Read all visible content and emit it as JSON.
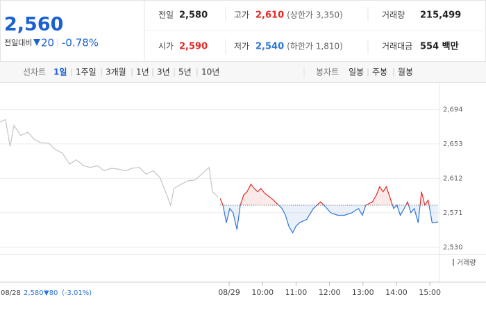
{
  "header": {
    "price": "2,560",
    "change_label": "전일대비",
    "change": "20",
    "change_pct": "-0.78%"
  },
  "stats": [
    {
      "label": "전일",
      "value": "2,580",
      "color": "#222222"
    },
    {
      "label": "고가",
      "value": "2,610",
      "note": "(상한가 3,350)",
      "color": "#e22926"
    },
    {
      "label": "거래량",
      "value": "215,499",
      "color": "#222222"
    },
    {
      "label": "시가",
      "value": "2,590",
      "color": "#e22926"
    },
    {
      "label": "저가",
      "value": "2,540",
      "note": "(하한가 1,810)",
      "color": "#2f75d6"
    },
    {
      "label": "거래대금",
      "value": "554 백만",
      "color": "#222222"
    }
  ],
  "tabs": {
    "line_label": "선차트",
    "line_items": [
      "1일",
      "1주일",
      "3개월",
      "1년",
      "3년",
      "5년",
      "10년"
    ],
    "candle_label": "봉차트",
    "candle_items": [
      "일봉",
      "주봉",
      "월봉"
    ]
  },
  "chart_data": {
    "type": "line",
    "baseline": 2580,
    "xlim": [
      -411,
      376
    ],
    "ylim": [
      2522,
      2725
    ],
    "yticks": [
      {
        "value": 2694,
        "label": "2,694"
      },
      {
        "value": 2653,
        "label": "2,653"
      },
      {
        "value": 2612,
        "label": "2,612"
      },
      {
        "value": 2571,
        "label": "2,571"
      },
      {
        "value": 2530,
        "label": "2,530"
      }
    ],
    "xticks": [
      {
        "value": 0,
        "label": "08/29"
      },
      {
        "value": 60,
        "label": "10:00"
      },
      {
        "value": 120,
        "label": "11:00"
      },
      {
        "value": 180,
        "label": "12:00"
      },
      {
        "value": 240,
        "label": "13:00"
      },
      {
        "value": 300,
        "label": "14:00"
      },
      {
        "value": 360,
        "label": "15:00"
      }
    ],
    "grid": true,
    "volume_label": "거래량",
    "series": [
      {
        "color": "#c4c4c4",
        "x": [
          -411,
          -401,
          -393,
          -386,
          -374,
          -361,
          -349,
          -336,
          -324,
          -311,
          -299,
          -286,
          -274,
          -261,
          -249,
          -236,
          -224,
          -211,
          -199,
          -186,
          -174,
          -161,
          -149,
          -136,
          -124,
          -105,
          -99,
          -86,
          -74,
          -61,
          -49,
          -36,
          -30,
          -20
        ],
        "values": [
          2679,
          2682,
          2650,
          2675,
          2663,
          2667,
          2658,
          2654,
          2654,
          2646,
          2642,
          2629,
          2634,
          2627,
          2625,
          2627,
          2621,
          2624,
          2623,
          2621,
          2624,
          2625,
          2617,
          2621,
          2613,
          2580,
          2600,
          2605,
          2609,
          2610,
          2617,
          2625,
          2596,
          2590
        ]
      },
      {
        "color_up": "#e22926",
        "color_down": "#2f75d6",
        "x": [
          -16,
          -11,
          -5,
          1,
          7,
          14,
          20,
          26,
          32,
          39,
          45,
          51,
          57,
          64,
          76,
          89,
          95,
          101,
          107,
          114,
          120,
          126,
          139,
          151,
          164,
          170,
          182,
          195,
          207,
          220,
          232,
          239,
          245,
          257,
          264,
          270,
          276,
          282,
          289,
          295,
          301,
          307,
          314,
          320,
          326,
          332,
          339,
          345,
          351,
          357,
          364,
          375
        ],
        "values": [
          2588,
          2580,
          2559,
          2576,
          2571,
          2551,
          2580,
          2592,
          2596,
          2605,
          2600,
          2596,
          2600,
          2594,
          2588,
          2580,
          2576,
          2568,
          2555,
          2547,
          2555,
          2559,
          2563,
          2576,
          2584,
          2580,
          2571,
          2568,
          2568,
          2571,
          2576,
          2568,
          2580,
          2584,
          2592,
          2602,
          2596,
          2602,
          2588,
          2576,
          2580,
          2568,
          2576,
          2584,
          2571,
          2576,
          2559,
          2596,
          2580,
          2586,
          2559,
          2560
        ]
      }
    ],
    "prev_day": {
      "date": "08/28",
      "close": "2,580",
      "change": "▼80",
      "change_pct": "(-3.01%)"
    }
  }
}
